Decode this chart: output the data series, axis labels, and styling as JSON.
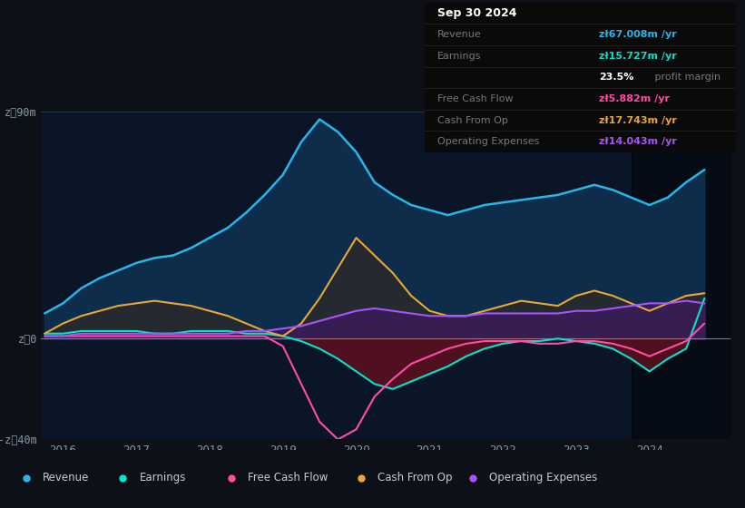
{
  "bg_color": "#0d1117",
  "plot_bg_color": "#0a1628",
  "years": [
    2015.75,
    2016.0,
    2016.25,
    2016.5,
    2016.75,
    2017.0,
    2017.25,
    2017.5,
    2017.75,
    2018.0,
    2018.25,
    2018.5,
    2018.75,
    2019.0,
    2019.25,
    2019.5,
    2019.75,
    2020.0,
    2020.25,
    2020.5,
    2020.75,
    2021.0,
    2021.25,
    2021.5,
    2021.75,
    2022.0,
    2022.25,
    2022.5,
    2022.75,
    2023.0,
    2023.25,
    2023.5,
    2023.75,
    2024.0,
    2024.25,
    2024.5,
    2024.75
  ],
  "revenue": [
    10,
    14,
    20,
    24,
    27,
    30,
    32,
    33,
    36,
    40,
    44,
    50,
    57,
    65,
    78,
    87,
    82,
    74,
    62,
    57,
    53,
    51,
    49,
    51,
    53,
    54,
    55,
    56,
    57,
    59,
    61,
    59,
    56,
    53,
    56,
    62,
    67
  ],
  "earnings": [
    2,
    2,
    3,
    3,
    3,
    3,
    2,
    2,
    3,
    3,
    3,
    2,
    2,
    1,
    -1,
    -4,
    -8,
    -13,
    -18,
    -20,
    -17,
    -14,
    -11,
    -7,
    -4,
    -2,
    -1,
    -1,
    0,
    -1,
    -2,
    -4,
    -8,
    -13,
    -8,
    -4,
    16
  ],
  "free_cash_flow": [
    1,
    1,
    1,
    1,
    1,
    1,
    1,
    1,
    1,
    1,
    1,
    1,
    1,
    -3,
    -18,
    -33,
    -40,
    -36,
    -23,
    -16,
    -10,
    -7,
    -4,
    -2,
    -1,
    -1,
    -1,
    -2,
    -2,
    -1,
    -1,
    -2,
    -4,
    -7,
    -4,
    -1,
    6
  ],
  "cash_from_op": [
    2,
    6,
    9,
    11,
    13,
    14,
    15,
    14,
    13,
    11,
    9,
    6,
    3,
    1,
    6,
    16,
    28,
    40,
    33,
    26,
    17,
    11,
    9,
    9,
    11,
    13,
    15,
    14,
    13,
    17,
    19,
    17,
    14,
    11,
    14,
    17,
    18
  ],
  "operating_expenses": [
    1,
    1,
    2,
    2,
    2,
    2,
    2,
    2,
    2,
    2,
    2,
    3,
    3,
    4,
    5,
    7,
    9,
    11,
    12,
    11,
    10,
    9,
    9,
    9,
    10,
    10,
    10,
    10,
    10,
    11,
    11,
    12,
    13,
    14,
    14,
    15,
    14
  ],
  "revenue_color": "#29b5e8",
  "earnings_color": "#00e5cc",
  "free_cash_flow_color": "#ff4da6",
  "cash_from_op_color": "#e8a838",
  "operating_expenses_color": "#a855f7",
  "revenue_fill_color": "#0e2d4a",
  "earnings_fill_neg_color": "#5a1020",
  "cash_from_op_fill_color": "#2a2a2a",
  "operating_expenses_fill_color": "#3d1a5e",
  "ylim": [
    -40,
    90
  ],
  "yticks": [
    -40,
    0,
    90
  ],
  "ytick_labels": [
    "-zᐥ40m",
    "zᐥ0",
    "zᐥ90m"
  ],
  "xticks": [
    2016,
    2017,
    2018,
    2019,
    2020,
    2021,
    2022,
    2023,
    2024
  ],
  "highlight_start": 2023.75,
  "legend_items": [
    {
      "label": "Revenue",
      "color": "#29b5e8"
    },
    {
      "label": "Earnings",
      "color": "#00e5cc"
    },
    {
      "label": "Free Cash Flow",
      "color": "#ff4da6"
    },
    {
      "label": "Cash From Op",
      "color": "#e8a838"
    },
    {
      "label": "Operating Expenses",
      "color": "#a855f7"
    }
  ],
  "infobox_title": "Sep 30 2024",
  "infobox_rows": [
    {
      "label": "Revenue",
      "value": "zᐥ67.008m /yr",
      "value_color": "#29b5e8"
    },
    {
      "label": "Earnings",
      "value": "zᐥ15.727m /yr",
      "value_color": "#00e5cc"
    },
    {
      "label": "",
      "value": "23.5% profit margin",
      "value_color": "#ffffff",
      "bold_prefix": "23.5%"
    },
    {
      "label": "Free Cash Flow",
      "value": "zᐥ5.882m /yr",
      "value_color": "#ff4da6"
    },
    {
      "label": "Cash From Op",
      "value": "zᐥ17.743m /yr",
      "value_color": "#e8a838"
    },
    {
      "label": "Operating Expenses",
      "value": "zᐥ14.043m /yr",
      "value_color": "#a855f7"
    }
  ]
}
